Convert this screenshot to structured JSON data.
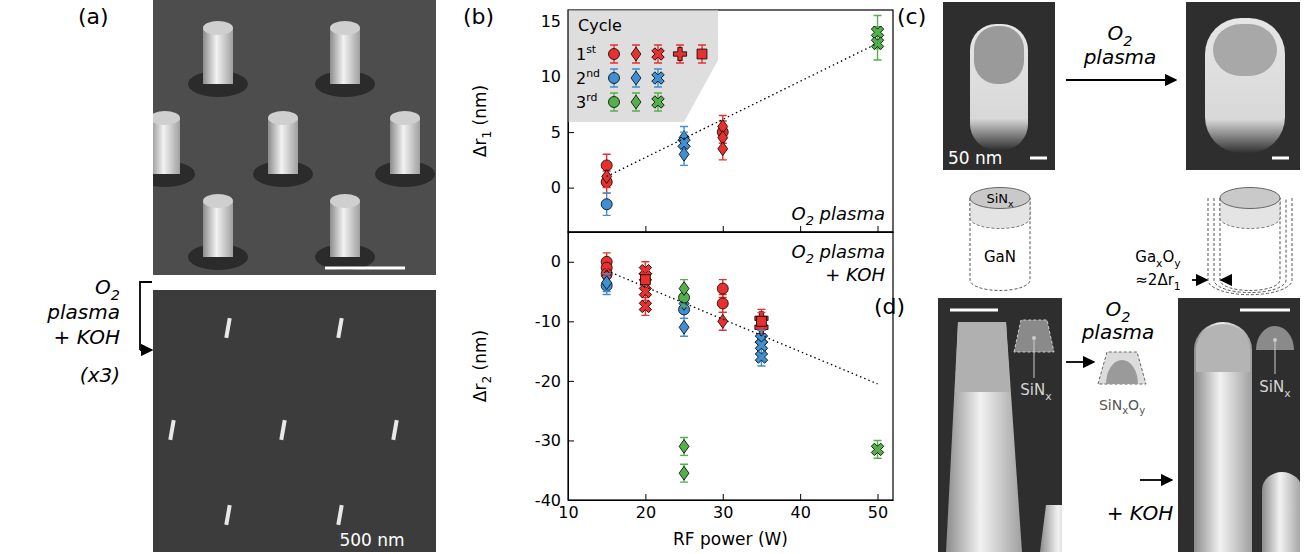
{
  "chart_data": [
    {
      "type": "scatter",
      "ylabel": "Δr1 (nm)",
      "xlim": [
        10,
        52
      ],
      "xticks": [
        10,
        20,
        30,
        40,
        50
      ],
      "ylim": [
        -4,
        16
      ],
      "yticks": [
        0,
        5,
        10,
        15
      ],
      "tick_labels": "y",
      "legend": "upper left",
      "legend_title": "Cycle",
      "annotations": [
        "O2 plasma"
      ],
      "series": [
        {
          "name": "1st",
          "color": "#e8312f",
          "marker": "circle",
          "x": [
            15,
            15,
            30
          ],
          "values": [
            2.0,
            0.5,
            5.0
          ],
          "errors": [
            1,
            1,
            1
          ]
        },
        {
          "name": "1st",
          "color": "#e8312f",
          "marker": "diamond",
          "x": [
            15,
            30,
            30,
            30
          ],
          "values": [
            1.0,
            5.5,
            4.5,
            3.5
          ],
          "errors": [
            1,
            1,
            1,
            1
          ]
        },
        {
          "name": "2nd",
          "color": "#3f8fd2",
          "marker": "circle",
          "x": [
            15
          ],
          "values": [
            -1.5
          ],
          "errors": [
            1
          ]
        },
        {
          "name": "2nd",
          "color": "#3f8fd2",
          "marker": "diamond",
          "x": [
            25,
            25
          ],
          "values": [
            4.5,
            3.0
          ],
          "errors": [
            1,
            1
          ]
        },
        {
          "name": "2nd",
          "color": "#3f8fd2",
          "marker": "x",
          "x": [
            25
          ],
          "values": [
            4.0
          ],
          "errors": [
            1
          ]
        },
        {
          "name": "3rd",
          "color": "#54b04a",
          "marker": "x",
          "x": [
            50,
            50
          ],
          "values": [
            14.0,
            13.0
          ],
          "errors": [
            1.5,
            1.5
          ]
        },
        {
          "type": "line",
          "line_style": "dotted",
          "color": "#000000",
          "x": [
            15,
            50
          ],
          "values": [
            1.0,
            13.0
          ]
        }
      ]
    },
    {
      "type": "scatter",
      "xlabel": "RF power (W)",
      "ylabel": "Δr2 (nm)",
      "xlim": [
        10,
        52
      ],
      "xticks": [
        10,
        20,
        30,
        40,
        50
      ],
      "ylim": [
        -40,
        5
      ],
      "yticks": [
        0,
        -10,
        -20,
        -30,
        -40
      ],
      "annotations": [
        "O2 plasma",
        "+ KOH"
      ],
      "series": [
        {
          "name": "1st",
          "color": "#e8312f",
          "marker": "circle",
          "x": [
            15,
            15,
            15,
            30,
            30
          ],
          "values": [
            0,
            -1,
            -2,
            -4.5,
            -7
          ],
          "errors": [
            1.5,
            1.5,
            1.5,
            1.5,
            1.5
          ]
        },
        {
          "name": "1st",
          "color": "#e8312f",
          "marker": "diamond",
          "x": [
            15,
            30
          ],
          "values": [
            -2.5,
            -10
          ],
          "errors": [
            1.5,
            1.5
          ]
        },
        {
          "name": "1st",
          "color": "#e8312f",
          "marker": "x",
          "x": [
            20,
            20,
            20,
            20
          ],
          "values": [
            -1.5,
            -2.5,
            -5,
            -7.5
          ],
          "errors": [
            1.5,
            1.5,
            1.5,
            1.5
          ]
        },
        {
          "name": "1st",
          "color": "#e8312f",
          "marker": "plus",
          "x": [
            35,
            35
          ],
          "values": [
            -9.5,
            -11
          ],
          "errors": [
            1.5,
            1.5
          ]
        },
        {
          "name": "1st",
          "color": "#e8312f",
          "marker": "square",
          "x": [
            20,
            35
          ],
          "values": [
            -3,
            -10
          ],
          "errors": [
            1.5,
            1.5
          ]
        },
        {
          "name": "2nd",
          "color": "#3f8fd2",
          "marker": "circle",
          "x": [
            15,
            25
          ],
          "values": [
            -4,
            -8
          ],
          "errors": [
            1.5,
            1.5
          ]
        },
        {
          "name": "2nd",
          "color": "#3f8fd2",
          "marker": "diamond",
          "x": [
            15,
            25,
            25
          ],
          "values": [
            -3.5,
            -7,
            -11
          ],
          "errors": [
            1.5,
            1.5,
            1.5
          ]
        },
        {
          "name": "2nd",
          "color": "#3f8fd2",
          "marker": "x",
          "x": [
            35,
            35,
            35
          ],
          "values": [
            -13,
            -14,
            -16
          ],
          "errors": [
            1.5,
            1.5,
            1.5
          ]
        },
        {
          "name": "3rd",
          "color": "#54b04a",
          "marker": "circle",
          "x": [
            25
          ],
          "values": [
            -6
          ],
          "errors": [
            1.5
          ]
        },
        {
          "name": "3rd",
          "color": "#54b04a",
          "marker": "diamond",
          "x": [
            25,
            25,
            25
          ],
          "values": [
            -4.5,
            -31,
            -35.5
          ],
          "errors": [
            1.5,
            1.5,
            1.5
          ]
        },
        {
          "name": "3rd",
          "color": "#54b04a",
          "marker": "x",
          "x": [
            50
          ],
          "values": [
            -31.5
          ],
          "errors": [
            1.5
          ]
        },
        {
          "type": "line",
          "line_style": "dotted",
          "color": "#000000",
          "x": [
            15,
            50
          ],
          "values": [
            -1.5,
            -20.5
          ]
        }
      ]
    }
  ],
  "figure": {
    "panel_a": {
      "label": "(a)",
      "scale_bar": "500 nm",
      "process": [
        "O2",
        "plasma",
        "+ KOH",
        "(x3)"
      ]
    },
    "panel_b": {
      "label": "(b)"
    },
    "panel_c": {
      "label": "(c)",
      "scale_bar": "50 nm",
      "process": [
        "O2",
        "plasma"
      ],
      "schematic": [
        "SiNx",
        "GaN",
        "GaxOy",
        "≈2Δr1"
      ]
    },
    "panel_d": {
      "label": "(d)",
      "process": [
        "O2",
        "plasma"
      ],
      "process_2": "+ KOH",
      "insets": [
        "SiNx",
        "SiNxOy",
        "SiNx"
      ]
    }
  }
}
